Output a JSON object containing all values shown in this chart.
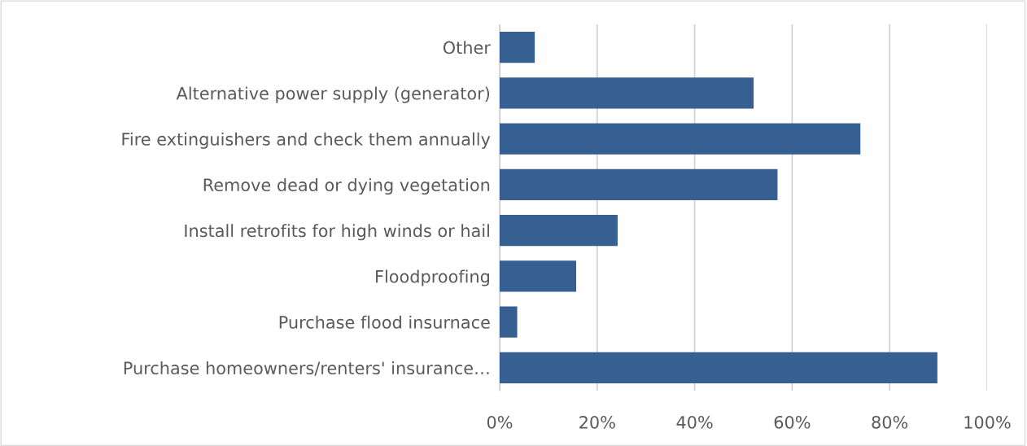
{
  "chart_data": {
    "type": "bar",
    "orientation": "horizontal",
    "categories": [
      "Other",
      "Alternative power supply (generator)",
      "Fire extinguishers and check them annually",
      "Remove dead or dying vegetation",
      "Install retrofits for high winds or hail",
      "Floodproofing",
      "Purchase flood insurnace",
      "Purchase homeowners/renters' insurance…"
    ],
    "values": [
      7.2,
      52.1,
      74.0,
      57.0,
      24.2,
      15.7,
      3.6,
      89.8
    ],
    "color": "#366092",
    "xlim": [
      0,
      100
    ],
    "xticks": [
      {
        "value": 0,
        "label": "0%"
      },
      {
        "value": 20,
        "label": "20%"
      },
      {
        "value": 40,
        "label": "40%"
      },
      {
        "value": 60,
        "label": "60%"
      },
      {
        "value": 80,
        "label": "80%"
      },
      {
        "value": 100,
        "label": "100%"
      }
    ],
    "grid": "x",
    "legend": false
  }
}
